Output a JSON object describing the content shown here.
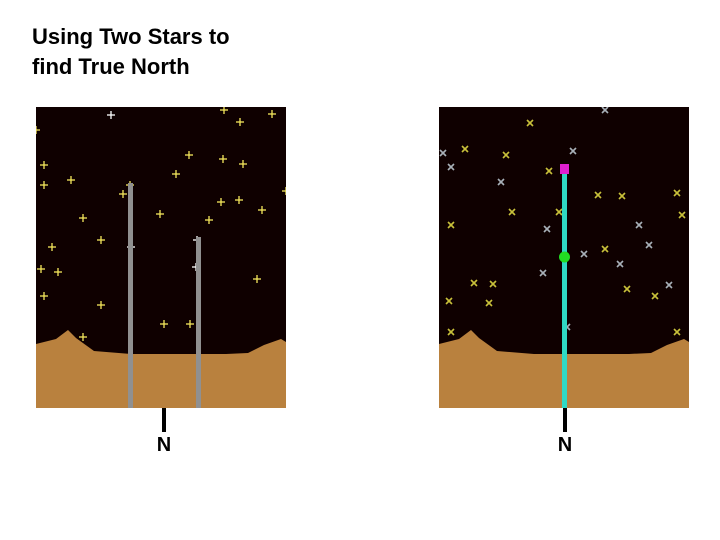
{
  "title": {
    "line1": "Using Two Stars to",
    "line2": "find True North"
  },
  "left_panel": {
    "north_label": "N"
  },
  "right_panel": {
    "north_label": "N"
  },
  "colors": {
    "sky": "#0f0000",
    "ground": "#b9813e",
    "left_stars": "#f4e85c",
    "white_stars": "#ffffff",
    "guide_lines": "#909090",
    "right_stars_yellow": "#c8c03a",
    "right_stars_gray": "#a8b0b8",
    "north_line": "#2fd9c4",
    "top_marker": "#e020d0",
    "mid_marker": "#22dd22"
  }
}
